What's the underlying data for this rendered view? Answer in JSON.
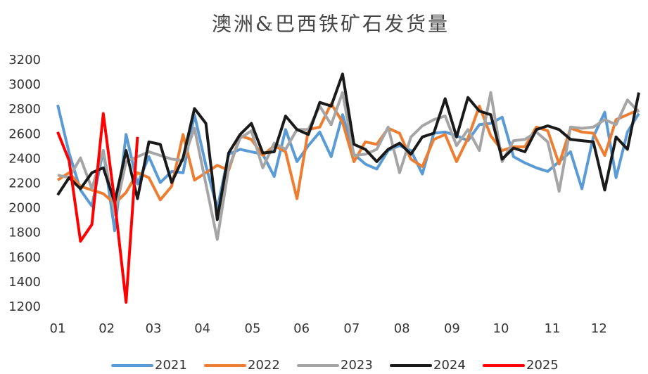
{
  "chart_data": {
    "type": "line",
    "title": "澳洲&巴西铁矿石发货量",
    "x": [
      0,
      1,
      2,
      3,
      4,
      5,
      6,
      7,
      8,
      9,
      10,
      11,
      12,
      13,
      14,
      15,
      16,
      17,
      18,
      19,
      20,
      21,
      22,
      23,
      24,
      25,
      26,
      27,
      28,
      29,
      30,
      31,
      32,
      33,
      34,
      35,
      36,
      37,
      38,
      39,
      40,
      41,
      42,
      43,
      44,
      45,
      46,
      47,
      48,
      49,
      50,
      51
    ],
    "xlim": [
      0,
      51.8
    ],
    "xticks": [
      {
        "value": 0,
        "label": "01"
      },
      {
        "value": 4.3,
        "label": "02"
      },
      {
        "value": 8.4,
        "label": "03"
      },
      {
        "value": 12.7,
        "label": "04"
      },
      {
        "value": 17.1,
        "label": "05"
      },
      {
        "value": 21.4,
        "label": "06"
      },
      {
        "value": 25.8,
        "label": "07"
      },
      {
        "value": 30.2,
        "label": "08"
      },
      {
        "value": 34.6,
        "label": "09"
      },
      {
        "value": 38.9,
        "label": "10"
      },
      {
        "value": 43.4,
        "label": "11"
      },
      {
        "value": 47.5,
        "label": "12"
      }
    ],
    "ylim": [
      1200,
      3200
    ],
    "yticks": [
      1200,
      1400,
      1600,
      1800,
      2000,
      2200,
      2400,
      2600,
      2800,
      3000,
      3200
    ],
    "grid": false,
    "legend": "bottom",
    "series": [
      {
        "name": "2021",
        "color": "#5b9bd5",
        "values": [
          2840,
          2450,
          2150,
          2020,
          2470,
          1820,
          2600,
          2200,
          2420,
          2210,
          2300,
          2290,
          2760,
          2350,
          2000,
          2440,
          2480,
          2460,
          2440,
          2260,
          2640,
          2380,
          2510,
          2620,
          2420,
          2760,
          2440,
          2360,
          2320,
          2470,
          2510,
          2470,
          2280,
          2610,
          2620,
          2590,
          2550,
          2680,
          2690,
          2740,
          2420,
          2370,
          2330,
          2300,
          2380,
          2460,
          2160,
          2580,
          2780,
          2250,
          2620,
          2770
        ]
      },
      {
        "name": "2022",
        "color": "#ed7d31",
        "values": [
          2230,
          2290,
          2180,
          2150,
          2120,
          2040,
          2130,
          2290,
          2250,
          2070,
          2180,
          2600,
          2230,
          2290,
          2350,
          2310,
          2590,
          2560,
          2430,
          2510,
          2460,
          2080,
          2640,
          2660,
          2850,
          2700,
          2380,
          2540,
          2520,
          2650,
          2610,
          2400,
          2340,
          2560,
          2600,
          2380,
          2570,
          2830,
          2590,
          2470,
          2500,
          2500,
          2660,
          2630,
          2360,
          2650,
          2620,
          2610,
          2430,
          2720,
          2760,
          2800
        ]
      },
      {
        "name": "2023",
        "color": "#a5a5a5",
        "values": [
          2270,
          2250,
          2410,
          2160,
          2470,
          1950,
          2380,
          2420,
          2460,
          2430,
          2400,
          2390,
          2650,
          2200,
          1750,
          2330,
          2570,
          2630,
          2330,
          2530,
          2480,
          2640,
          2640,
          2830,
          2680,
          2940,
          2430,
          2440,
          2480,
          2660,
          2290,
          2580,
          2670,
          2720,
          2750,
          2510,
          2640,
          2470,
          2940,
          2380,
          2550,
          2560,
          2620,
          2540,
          2140,
          2660,
          2650,
          2660,
          2720,
          2680,
          2880,
          2780
        ]
      },
      {
        "name": "2024",
        "color": "#1a1a1a",
        "values": [
          2110,
          2250,
          2160,
          2290,
          2330,
          2050,
          2470,
          2080,
          2540,
          2520,
          2210,
          2410,
          2810,
          2690,
          1910,
          2450,
          2600,
          2690,
          2450,
          2460,
          2750,
          2640,
          2600,
          2860,
          2830,
          3090,
          2520,
          2480,
          2380,
          2480,
          2530,
          2440,
          2580,
          2610,
          2890,
          2580,
          2900,
          2790,
          2760,
          2400,
          2490,
          2460,
          2640,
          2670,
          2640,
          2560,
          2550,
          2540,
          2150,
          2580,
          2480,
          2940
        ]
      },
      {
        "name": "2025",
        "color": "#ff0000",
        "values": [
          2620,
          2390,
          1735,
          1870,
          2770,
          2060,
          1240,
          2580,
          null,
          null,
          null,
          null,
          null,
          null,
          null,
          null,
          null,
          null,
          null,
          null,
          null,
          null,
          null,
          null,
          null,
          null,
          null,
          null,
          null,
          null,
          null,
          null,
          null,
          null,
          null,
          null,
          null,
          null,
          null,
          null,
          null,
          null,
          null,
          null,
          null,
          null,
          null,
          null,
          null,
          null,
          null,
          null
        ]
      }
    ]
  }
}
